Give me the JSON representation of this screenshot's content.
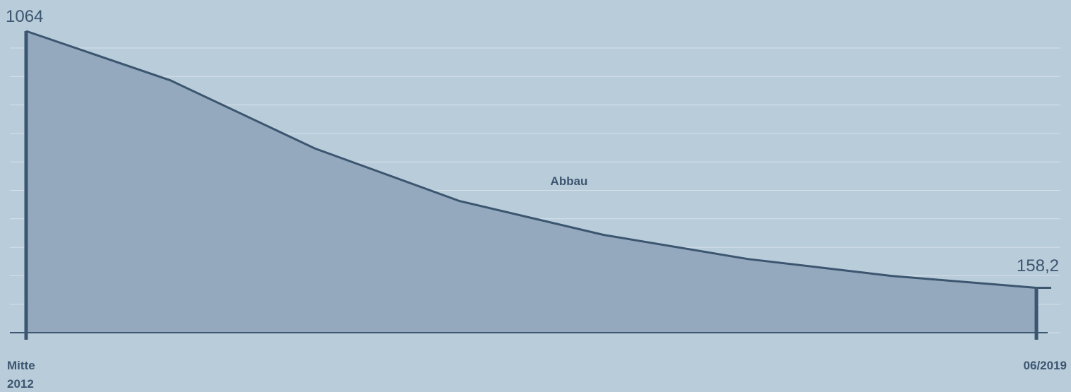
{
  "chart_data": {
    "type": "area",
    "x": [
      "Mitte 2012",
      "",
      "",
      "",
      "",
      "",
      "",
      "06/2019"
    ],
    "values": [
      1064,
      890,
      650,
      465,
      345,
      260,
      200,
      158.2
    ],
    "series": [
      {
        "values": [
          1064,
          890,
          650,
          465,
          345,
          260,
          200,
          158.2
        ]
      }
    ],
    "start_value_label": "1064",
    "end_value_label": "158,2",
    "x_start_label": [
      "Mitte",
      "2012"
    ],
    "x_end_label": "06/2019",
    "area_label": "Abbau",
    "ylim": [
      0,
      1064
    ],
    "grid": true,
    "colors": {
      "background": "#b9ccda",
      "area_fill": "#94a9bd",
      "line": "#3c5670",
      "grid": "#d6e1ea",
      "text": "#3c5670"
    }
  }
}
